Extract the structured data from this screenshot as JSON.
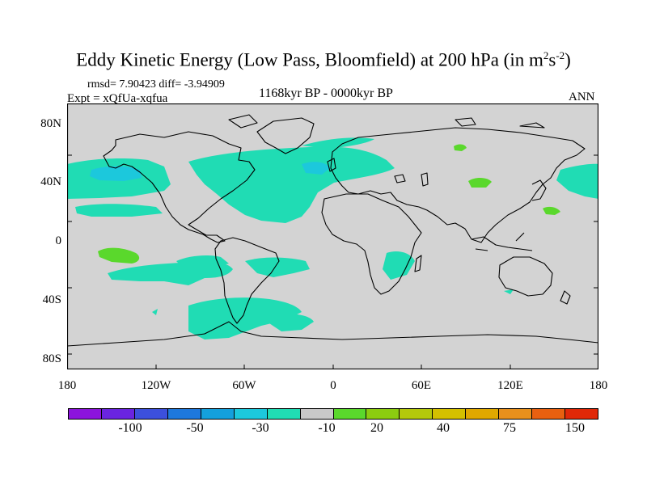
{
  "title": {
    "main": "Eddy Kinetic Energy (Low Pass, Bloomfield) at 200 hPa (in m",
    "sup1": "2",
    "mid": "s",
    "sup2": "-2",
    "close": ")"
  },
  "stats": "rmsd= 7.90423 diff= -3.94909",
  "experiment": "Expt = xQfUa-xqfua",
  "period": "1168kyr BP - 0000kyr BP",
  "season": "ANN",
  "map": {
    "lat_labels": [
      "80N",
      "40N",
      "0",
      "40S",
      "80S"
    ],
    "lon_labels": [
      "180",
      "120W",
      "60W",
      "0",
      "60E",
      "120E",
      "180"
    ],
    "land_color": "#d3d3d3",
    "anomaly_colors": {
      "neg_10_to_20": "#20dcb4",
      "neg_20_to_30": "#1cc8dc",
      "pos_10_to_20": "#5ad82c"
    }
  },
  "colorbar": {
    "colors": [
      "#8c14dc",
      "#6a24e0",
      "#3c50dc",
      "#1e78dc",
      "#14a0dc",
      "#1cc8dc",
      "#20dcb4",
      "#c8c8c8",
      "#5ad82c",
      "#8ccc10",
      "#b4c80c",
      "#d4c000",
      "#e0a800",
      "#e8901c",
      "#e86010",
      "#e02808"
    ],
    "labels": [
      "-100",
      "-50",
      "-30",
      "-10",
      "20",
      "40",
      "75",
      "150"
    ]
  }
}
